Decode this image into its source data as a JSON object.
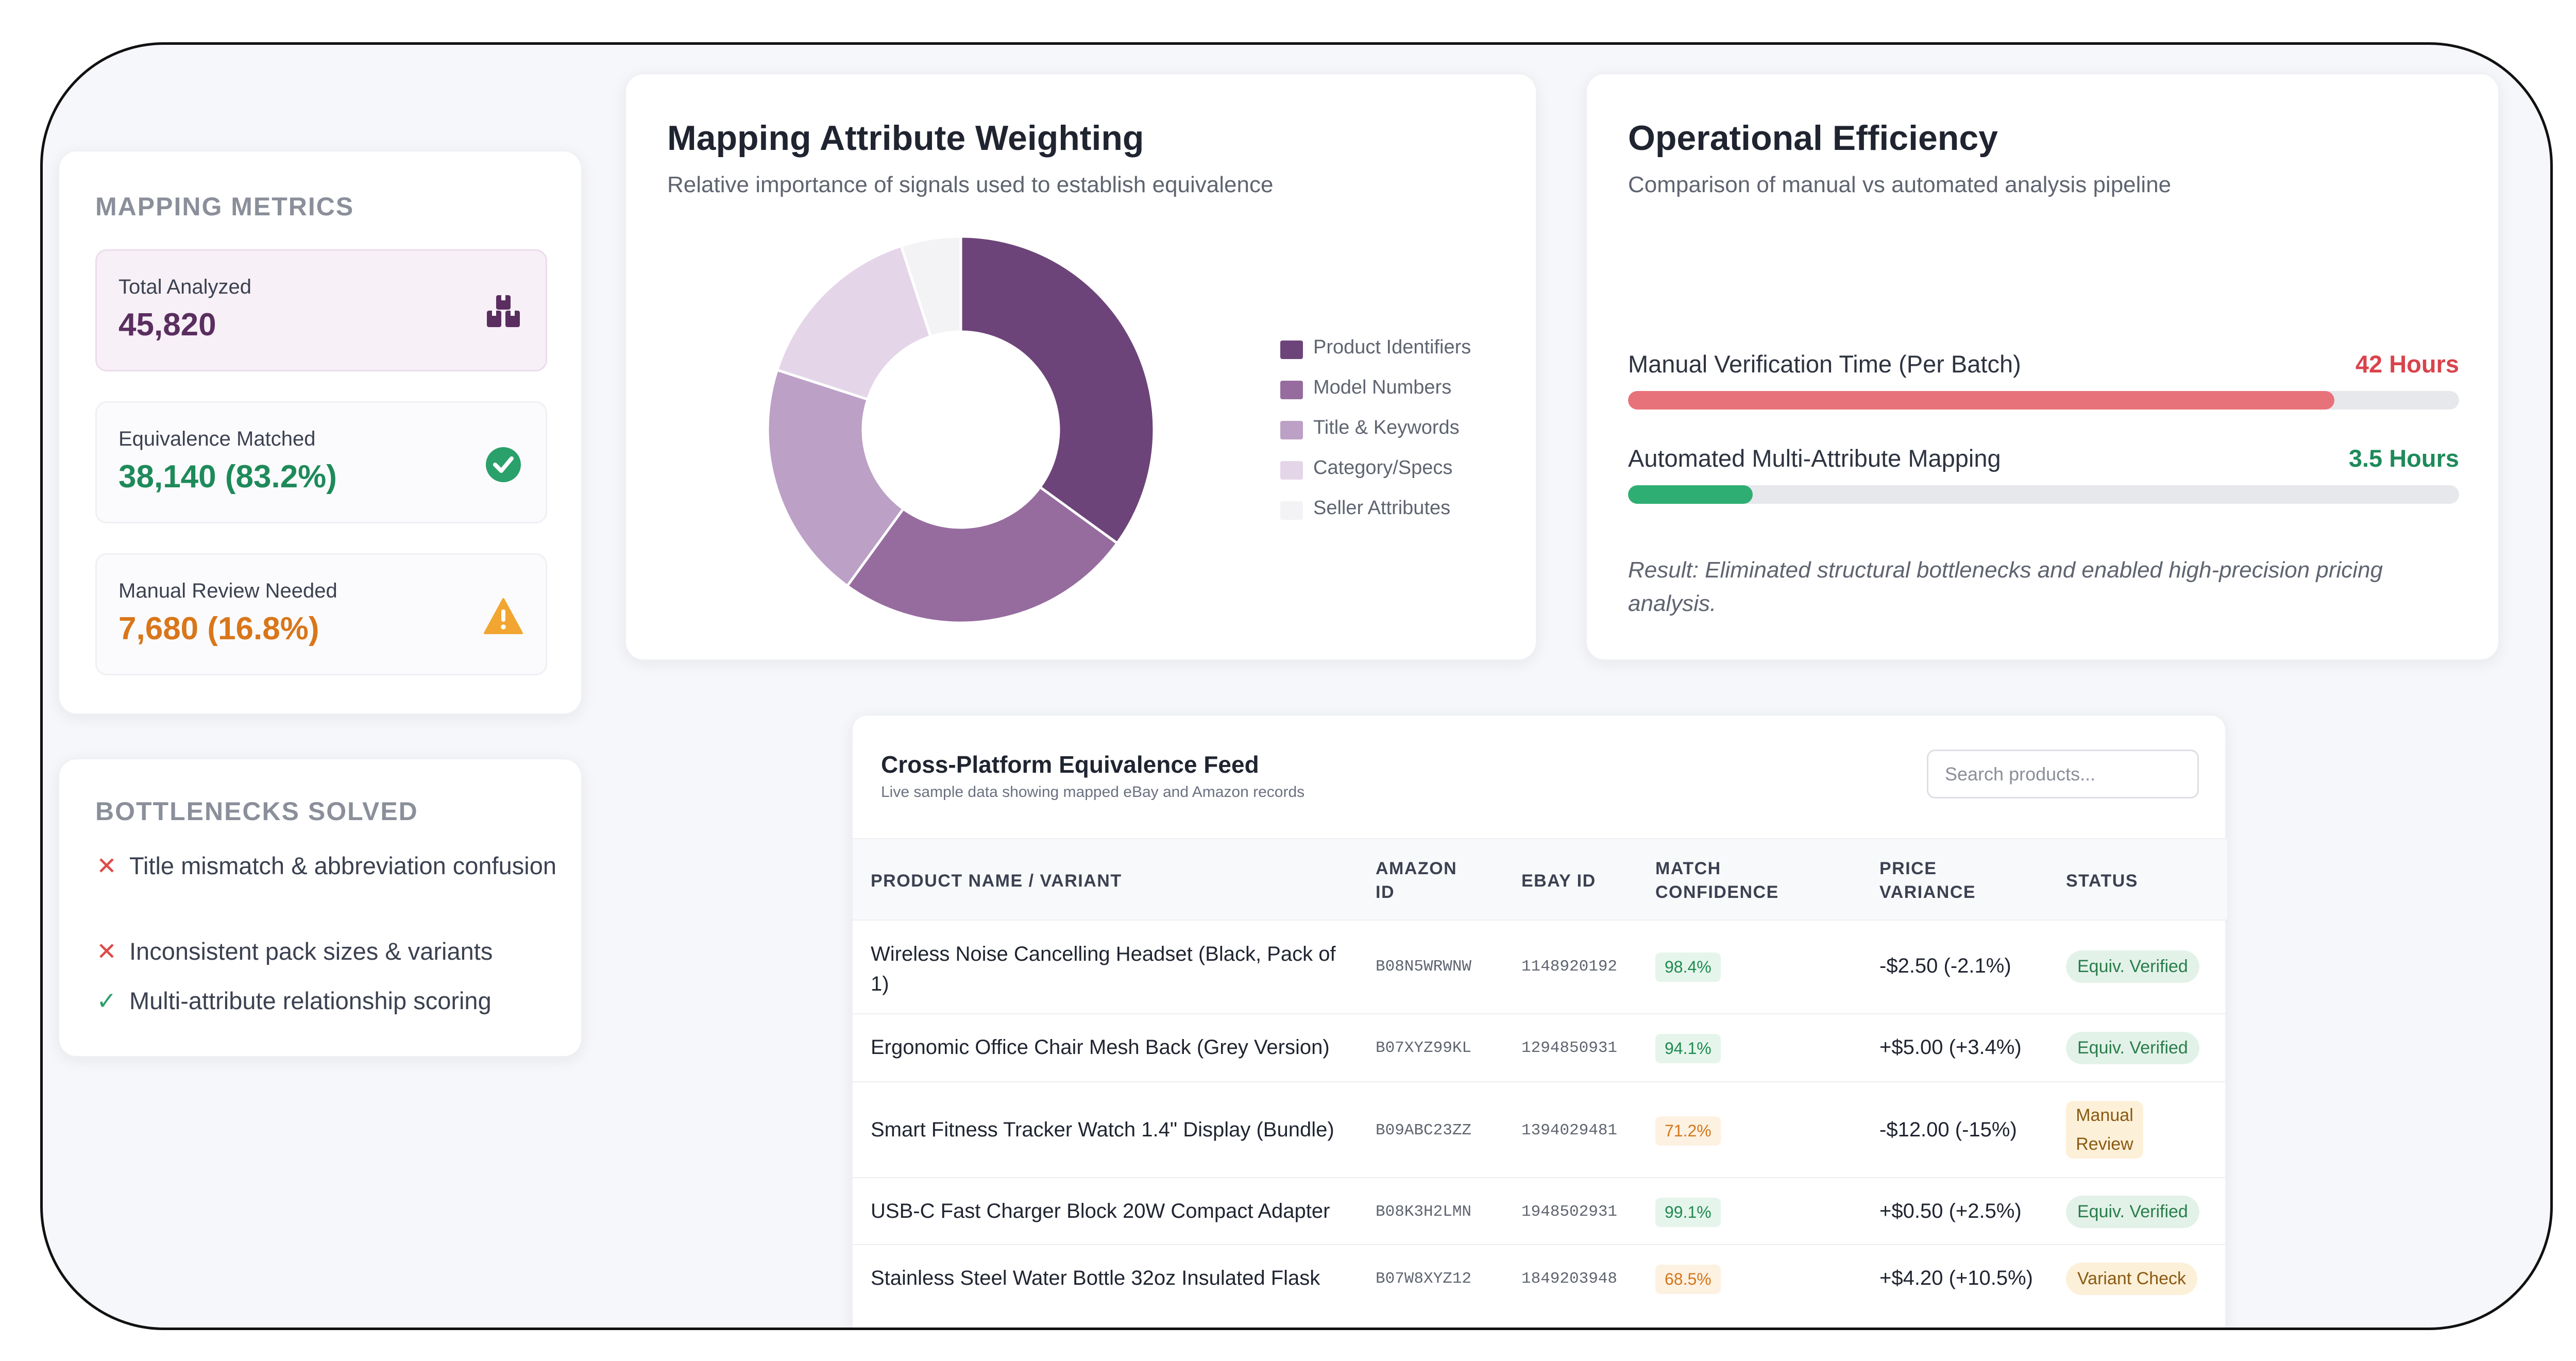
{
  "metrics": {
    "title": "MAPPING METRICS",
    "items": [
      {
        "label": "Total Analyzed",
        "value": "45,820",
        "icon": "boxes-icon",
        "color": "#5a2e5f"
      },
      {
        "label": "Equivalence Matched",
        "value": "38,140 (83.2%)",
        "icon": "check-circle-icon",
        "color": "#1e8a5a"
      },
      {
        "label": "Manual Review Needed",
        "value": "7,680 (16.8%)",
        "icon": "warning-icon",
        "color": "#d9761a"
      }
    ]
  },
  "bottlenecks": {
    "title": "BOTTLENECKS SOLVED",
    "items": [
      {
        "text": "Title mismatch & abbreviation confusion",
        "mark": "✕",
        "icon": "cross-icon"
      },
      {
        "text": "Inconsistent pack sizes & variants",
        "mark": "✕",
        "icon": "cross-icon"
      },
      {
        "text": "Multi-attribute relationship scoring",
        "mark": "✓",
        "icon": "check-icon"
      }
    ]
  },
  "weighting": {
    "title": "Mapping Attribute Weighting",
    "subtitle": "Relative importance of signals used to establish equivalence"
  },
  "chart_data": {
    "type": "pie",
    "categories": [
      "Product Identifiers",
      "Model Numbers",
      "Title & Keywords",
      "Category/Specs",
      "Seller Attributes"
    ],
    "values": [
      35,
      25,
      20,
      15,
      5
    ],
    "colors": [
      "#6d4479",
      "#966c9f",
      "#bca0c6",
      "#e4d6e8",
      "#f3f2f4"
    ],
    "legend": "right"
  },
  "efficiency": {
    "title": "Operational Efficiency",
    "subtitle": "Comparison of manual vs automated analysis pipeline",
    "bars": [
      {
        "label": "Manual Verification Time (Per Batch)",
        "value": "42 Hours",
        "fraction": 0.85,
        "color": "#e8727a",
        "value_color": "#d9434c"
      },
      {
        "label": "Automated Multi-Attribute Mapping",
        "value": "3.5 Hours",
        "fraction": 0.15,
        "color": "#2fae73",
        "value_color": "#1e8a5a"
      }
    ],
    "result": "Result: Eliminated structural bottlenecks and enabled high-precision pricing analysis."
  },
  "feed": {
    "title": "Cross-Platform Equivalence Feed",
    "subtitle": "Live sample data showing mapped eBay and Amazon records",
    "search_placeholder": "Search products...",
    "headers": {
      "product": "PRODUCT NAME / VARIANT",
      "amazon": "AMAZON ID",
      "ebay": "EBAY ID",
      "confidence": "MATCH CONFIDENCE",
      "variance": "PRICE VARIANCE",
      "status": "STATUS"
    },
    "rows": [
      {
        "product": "Wireless Noise Cancelling Headset (Black, Pack of 1)",
        "amazon": "B08N5WRWNW",
        "ebay": "1148920192",
        "confidence": "98.4%",
        "conf_level": "high",
        "variance": "-$2.50 (-2.1%)",
        "status": "Equiv. Verified",
        "status_type": "ok"
      },
      {
        "product": "Ergonomic Office Chair Mesh Back (Grey Version)",
        "amazon": "B07XYZ99KL",
        "ebay": "1294850931",
        "confidence": "94.1%",
        "conf_level": "high",
        "variance": "+$5.00 (+3.4%)",
        "status": "Equiv. Verified",
        "status_type": "ok"
      },
      {
        "product": "Smart Fitness Tracker Watch 1.4\" Display (Bundle)",
        "amazon": "B09ABC23ZZ",
        "ebay": "1394029481",
        "confidence": "71.2%",
        "conf_level": "low",
        "variance": "-$12.00 (-15%)",
        "status": "Manual Review",
        "status_type": "warn"
      },
      {
        "product": "USB-C Fast Charger Block 20W Compact Adapter",
        "amazon": "B08K3H2LMN",
        "ebay": "1948502931",
        "confidence": "99.1%",
        "conf_level": "high",
        "variance": "+$0.50 (+2.5%)",
        "status": "Equiv. Verified",
        "status_type": "ok"
      },
      {
        "product": "Stainless Steel Water Bottle 32oz Insulated Flask",
        "amazon": "B07W8XYZ12",
        "ebay": "1849203948",
        "confidence": "68.5%",
        "conf_level": "low",
        "variance": "+$4.20 (+10.5%)",
        "status": "Variant Check",
        "status_type": "warn"
      }
    ]
  }
}
